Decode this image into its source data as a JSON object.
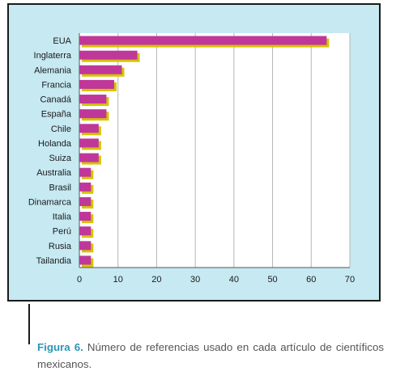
{
  "colors": {
    "panel_background": "#c6e9f2",
    "plot_background": "#ffffff",
    "bar_primary": "#c0379a",
    "bar_shadow": "#d7c300",
    "gridline": "#b5b5b5",
    "caption_label": "#2a96b8"
  },
  "caption": {
    "label": "Figura 6.",
    "text": " Número de referencias usado en cada artículo de científicos mexicanos."
  },
  "chart_data": {
    "type": "bar",
    "orientation": "horizontal",
    "categories": [
      "EUA",
      "Inglaterra",
      "Alemania",
      "Francia",
      "Canadá",
      "España",
      "Chile",
      "Holanda",
      "Suiza",
      "Australia",
      "Brasil",
      "Dinamarca",
      "Italia",
      "Perú",
      "Rusia",
      "Tailandia"
    ],
    "values": [
      64,
      15,
      11,
      9,
      7,
      7,
      5,
      5,
      5,
      3,
      3,
      3,
      3,
      3,
      3,
      3
    ],
    "xlim": [
      0,
      70
    ],
    "xticks": [
      "0",
      "10",
      "20",
      "30",
      "40",
      "50",
      "60",
      "70"
    ],
    "grid": "vertical",
    "legend": "none",
    "title": "",
    "xlabel": "",
    "ylabel": ""
  }
}
